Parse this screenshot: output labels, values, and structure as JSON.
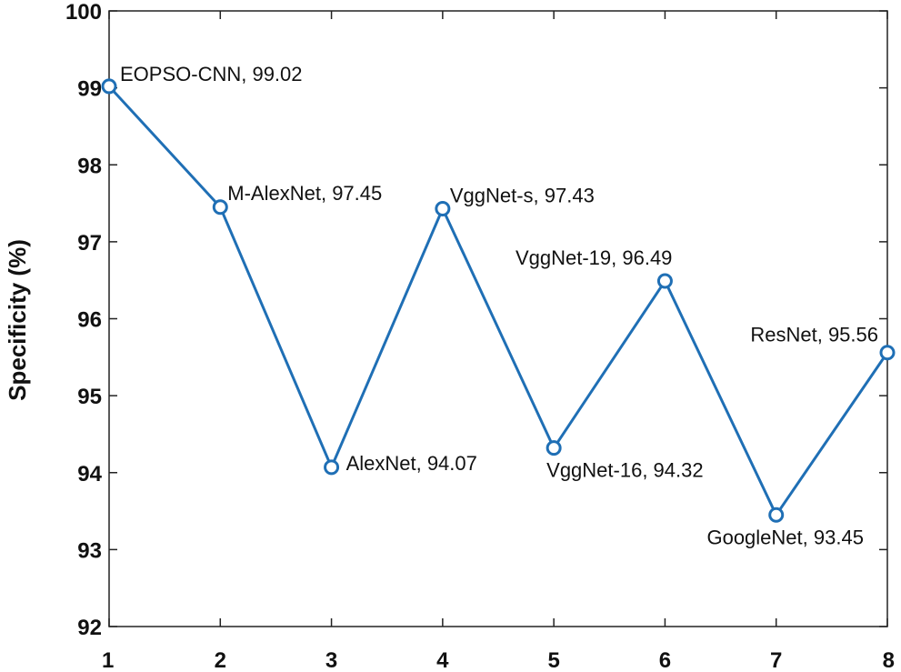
{
  "chart_data": {
    "type": "line",
    "title": "",
    "xlabel": "",
    "ylabel": "Specificity (%)",
    "x": [
      1,
      2,
      3,
      4,
      5,
      6,
      7,
      8
    ],
    "xlim": [
      1,
      8
    ],
    "ylim": [
      92,
      100
    ],
    "xticks": [
      1,
      2,
      3,
      4,
      5,
      6,
      7,
      8
    ],
    "yticks": [
      92,
      93,
      94,
      95,
      96,
      97,
      98,
      99,
      100
    ],
    "grid": false,
    "series": [
      {
        "values": [
          99.02,
          97.45,
          94.07,
          97.43,
          94.32,
          96.49,
          93.45,
          95.56
        ],
        "marker": "circle",
        "color": "#1f6fb5"
      }
    ],
    "annotations": [
      "EOPSO-CNN, 99.02",
      "M-AlexNet, 97.45",
      "AlexNet, 94.07",
      "VggNet-s, 97.43",
      "VggNet-16, 94.32",
      "VggNet-19, 96.49",
      "GoogleNet, 93.45",
      "ResNet, 95.56"
    ]
  }
}
